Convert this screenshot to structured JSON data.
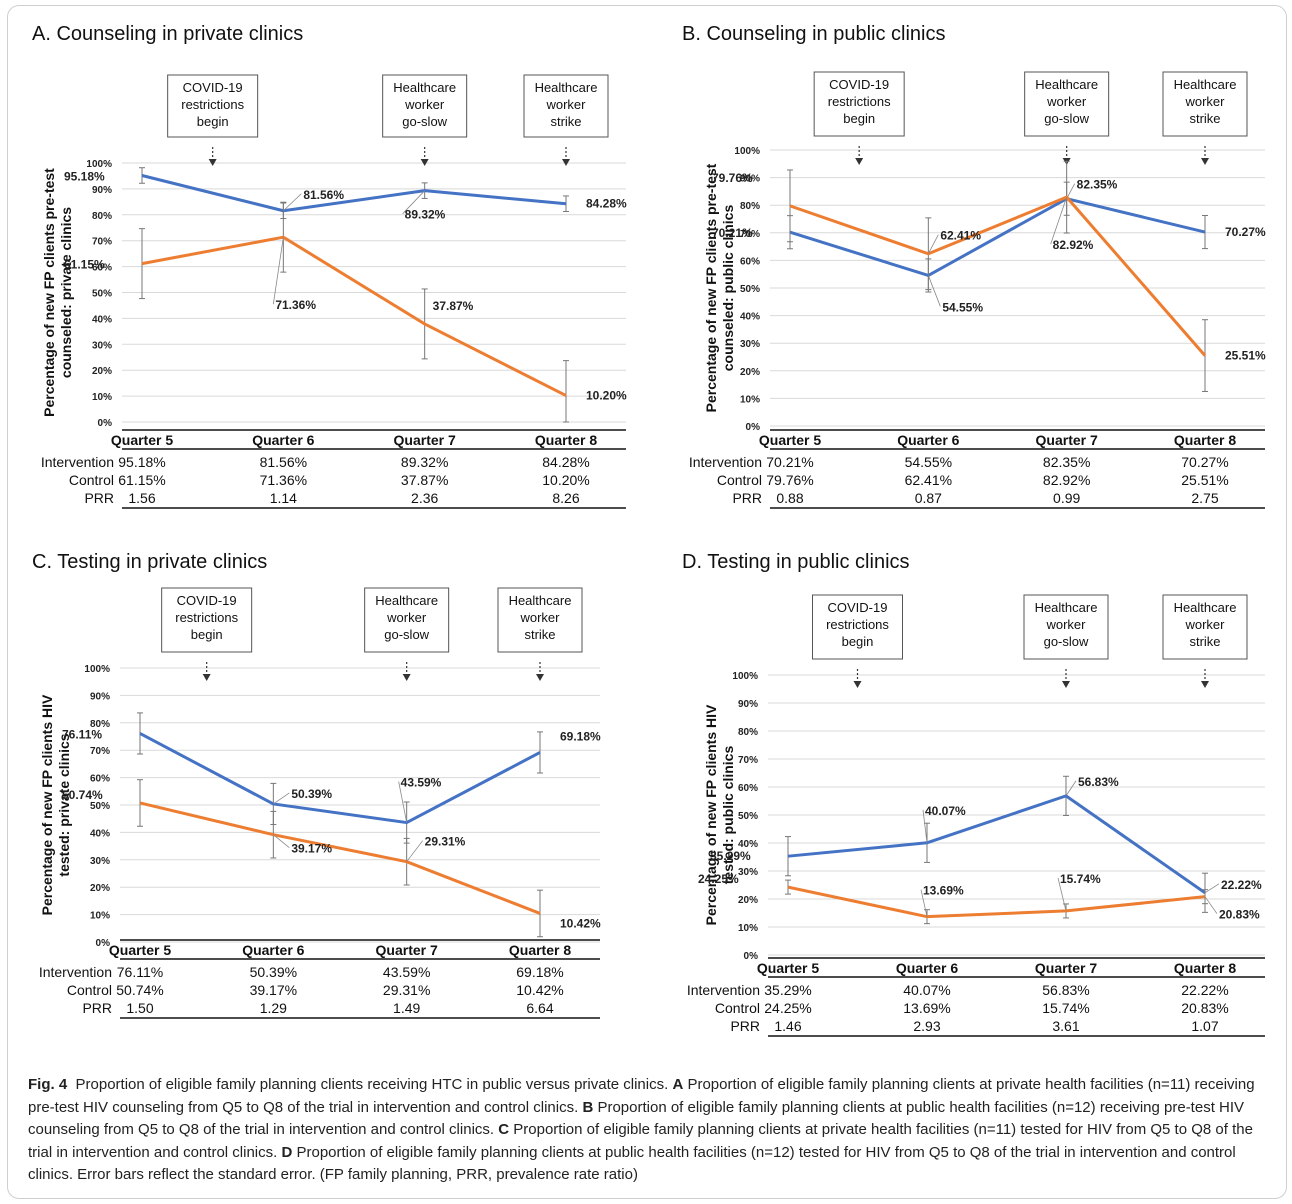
{
  "panels": [
    {
      "id": "A",
      "title": "A. Counseling in private clinics",
      "ylabel": [
        "Percentage of new FP clients pre-test",
        "counseled: private clinics"
      ],
      "events": [
        {
          "text": [
            "COVID-19",
            "restrictions",
            "begin"
          ],
          "at": 5.5
        },
        {
          "text": [
            "Healthcare",
            "worker",
            "go-slow"
          ],
          "at": 7
        },
        {
          "text": [
            "Healthcare",
            "worker",
            "strike"
          ],
          "at": 8
        }
      ],
      "table": {
        "headers": [
          "Quarter 5",
          "Quarter 6",
          "Quarter 7",
          "Quarter 8"
        ],
        "rows": [
          {
            "label": "Intervention",
            "values": [
              "95.18%",
              "81.56%",
              "89.32%",
              "84.28%"
            ]
          },
          {
            "label": "Control",
            "values": [
              "61.15%",
              "71.36%",
              "37.87%",
              "10.20%"
            ]
          },
          {
            "label": "PRR",
            "values": [
              "1.56",
              "1.14",
              "2.36",
              "8.26"
            ]
          }
        ]
      }
    },
    {
      "id": "B",
      "title": "B. Counseling in public clinics",
      "ylabel": [
        "Percentage of new FP clients pre-test",
        "counseled: public clinics"
      ],
      "events": [
        {
          "text": [
            "COVID-19",
            "restrictions",
            "begin"
          ],
          "at": 5.5
        },
        {
          "text": [
            "Healthcare",
            "worker",
            "go-slow"
          ],
          "at": 7
        },
        {
          "text": [
            "Healthcare",
            "worker",
            "strike"
          ],
          "at": 8
        }
      ],
      "table": {
        "headers": [
          "Quarter 5",
          "Quarter 6",
          "Quarter 7",
          "Quarter 8"
        ],
        "rows": [
          {
            "label": "Intervention",
            "values": [
              "70.21%",
              "54.55%",
              "82.35%",
              "70.27%"
            ]
          },
          {
            "label": "Control",
            "values": [
              "79.76%",
              "62.41%",
              "82.92%",
              "25.51%"
            ]
          },
          {
            "label": "PRR",
            "values": [
              "0.88",
              "0.87",
              "0.99",
              "2.75"
            ]
          }
        ]
      }
    },
    {
      "id": "C",
      "title": "C. Testing in private clinics",
      "ylabel": [
        "Percentage of new FP clients HIV",
        "tested: private clinics"
      ],
      "events": [
        {
          "text": [
            "COVID-19",
            "restrictions",
            "begin"
          ],
          "at": 5.5
        },
        {
          "text": [
            "Healthcare",
            "worker",
            "go-slow"
          ],
          "at": 7
        },
        {
          "text": [
            "Healthcare",
            "worker",
            "strike"
          ],
          "at": 8
        }
      ],
      "table": {
        "headers": [
          "Quarter 5",
          "Quarter 6",
          "Quarter 7",
          "Quarter 8"
        ],
        "rows": [
          {
            "label": "Intervention",
            "values": [
              "76.11%",
              "50.39%",
              "43.59%",
              "69.18%"
            ]
          },
          {
            "label": "Control",
            "values": [
              "50.74%",
              "39.17%",
              "29.31%",
              "10.42%"
            ]
          },
          {
            "label": "PRR",
            "values": [
              "1.50",
              "1.29",
              "1.49",
              "6.64"
            ]
          }
        ]
      }
    },
    {
      "id": "D",
      "title": "D. Testing in public clinics",
      "ylabel": [
        "Percentage of new FP clients HIV",
        "tested: public clinics"
      ],
      "events": [
        {
          "text": [
            "COVID-19",
            "restrictions",
            "begin"
          ],
          "at": 5.5
        },
        {
          "text": [
            "Healthcare",
            "worker",
            "go-slow"
          ],
          "at": 7
        },
        {
          "text": [
            "Healthcare",
            "worker",
            "strike"
          ],
          "at": 8
        }
      ],
      "table": {
        "headers": [
          "Quarter 5",
          "Quarter 6",
          "Quarter 7",
          "Quarter 8"
        ],
        "rows": [
          {
            "label": "Intervention",
            "values": [
              "35.29%",
              "40.07%",
              "56.83%",
              "22.22%"
            ]
          },
          {
            "label": "Control",
            "values": [
              "24.25%",
              "13.69%",
              "15.74%",
              "20.83%"
            ]
          },
          {
            "label": "PRR",
            "values": [
              "1.46",
              "2.93",
              "3.61",
              "1.07"
            ]
          }
        ]
      }
    }
  ],
  "chart_data": [
    {
      "type": "line",
      "title": "A. Counseling in private clinics",
      "ylabel": "Percentage of new FP clients pre-test counseled: private clinics",
      "ylim": [
        0,
        100
      ],
      "yticks": [
        "0%",
        "10%",
        "20%",
        "30%",
        "40%",
        "50%",
        "60%",
        "70%",
        "80%",
        "90%",
        "100%"
      ],
      "grid": true,
      "categories": [
        "Quarter 5",
        "Quarter 6",
        "Quarter 7",
        "Quarter 8"
      ],
      "series": [
        {
          "color": "#4472C4",
          "values": [
            95.18,
            81.56,
            89.32,
            84.28
          ],
          "labels": [
            "95.18%",
            "81.56%",
            "89.32%",
            "84.28%"
          ],
          "error": [
            3,
            3,
            3,
            3
          ]
        },
        {
          "color": "#ED7D31",
          "values": [
            61.15,
            71.36,
            37.87,
            10.2
          ],
          "labels": [
            "61.15%",
            "71.36%",
            "37.87%",
            "10.20%"
          ],
          "error": [
            13.5,
            13.5,
            13.5,
            13.5
          ]
        }
      ]
    },
    {
      "type": "line",
      "title": "B. Counseling in public clinics",
      "ylabel": "Percentage of new FP clients pre-test counseled: public clinics",
      "ylim": [
        0,
        100
      ],
      "yticks": [
        "0%",
        "10%",
        "20%",
        "30%",
        "40%",
        "50%",
        "60%",
        "70%",
        "80%",
        "90%",
        "100%"
      ],
      "grid": true,
      "categories": [
        "Quarter 5",
        "Quarter 6",
        "Quarter 7",
        "Quarter 8"
      ],
      "series": [
        {
          "color": "#4472C4",
          "values": [
            70.21,
            54.55,
            82.35,
            70.27
          ],
          "labels": [
            "70.21%",
            "54.55%",
            "82.35%",
            "70.27%"
          ],
          "error": [
            6,
            6,
            6,
            6
          ]
        },
        {
          "color": "#ED7D31",
          "values": [
            79.76,
            62.41,
            82.92,
            25.51
          ],
          "labels": [
            "79.76%",
            "62.41%",
            "82.92%",
            "25.51%"
          ],
          "error": [
            13,
            13,
            13,
            13
          ]
        }
      ]
    },
    {
      "type": "line",
      "title": "C. Testing in private clinics",
      "ylabel": "Percentage of new FP clients HIV tested: private clinics",
      "ylim": [
        0,
        100
      ],
      "yticks": [
        "0%",
        "10%",
        "20%",
        "30%",
        "40%",
        "50%",
        "60%",
        "70%",
        "80%",
        "90%",
        "100%"
      ],
      "grid": true,
      "categories": [
        "Quarter 5",
        "Quarter 6",
        "Quarter 7",
        "Quarter 8"
      ],
      "series": [
        {
          "color": "#4472C4",
          "values": [
            76.11,
            50.39,
            43.59,
            69.18
          ],
          "labels": [
            "76.11%",
            "50.39%",
            "43.59%",
            "69.18%"
          ],
          "error": [
            7.5,
            7.5,
            7.5,
            7.5
          ]
        },
        {
          "color": "#ED7D31",
          "values": [
            50.74,
            39.17,
            29.31,
            10.42
          ],
          "labels": [
            "50.74%",
            "39.17%",
            "29.31%",
            "10.42%"
          ],
          "error": [
            8.5,
            8.5,
            8.5,
            8.5
          ]
        }
      ]
    },
    {
      "type": "line",
      "title": "D. Testing in public clinics",
      "ylabel": "Percentage of new FP clients HIV tested: public clinics",
      "ylim": [
        0,
        100
      ],
      "yticks": [
        "0%",
        "10%",
        "20%",
        "30%",
        "40%",
        "50%",
        "60%",
        "70%",
        "80%",
        "90%",
        "100%"
      ],
      "grid": true,
      "categories": [
        "Quarter 5",
        "Quarter 6",
        "Quarter 7",
        "Quarter 8"
      ],
      "series": [
        {
          "color": "#4472C4",
          "values": [
            35.29,
            40.07,
            56.83,
            22.22
          ],
          "labels": [
            "35.29%",
            "40.07%",
            "56.83%",
            "22.22%"
          ],
          "error": [
            7,
            7,
            7,
            7
          ]
        },
        {
          "color": "#ED7D31",
          "values": [
            24.25,
            13.69,
            15.74,
            20.83
          ],
          "labels": [
            "24.25%",
            "13.69%",
            "15.74%",
            "20.83%"
          ],
          "error": [
            2.5,
            2.5,
            2.5,
            2.5
          ]
        }
      ]
    }
  ],
  "caption": {
    "figlabel": "Fig. 4",
    "intro": "Proportion of eligible family planning clients receiving HTC in public versus private clinics.",
    "parts": [
      {
        "letter": "A",
        "text": "Proportion of eligible family planning clients at private health facilities (n=11) receiving pre-test HIV counseling from Q5 to Q8 of the trial in intervention and control clinics."
      },
      {
        "letter": "B",
        "text": "Proportion of eligible family planning clients at public health facilities (n=12) receiving pre-test HIV counseling from Q5 to Q8 of the trial in intervention and control clinics."
      },
      {
        "letter": "C",
        "text": "Proportion of eligible family planning clients at private health facilities (n=11) tested for HIV from Q5 to Q8 of the trial in intervention and control clinics."
      },
      {
        "letter": "D",
        "text": "Proportion of eligible family planning clients at public health facilities (n=12) tested for HIV from Q5 to Q8 of the trial in intervention and control clinics. Error bars reflect the standard error. (FP family planning, PRR, prevalence rate ratio)"
      }
    ]
  }
}
